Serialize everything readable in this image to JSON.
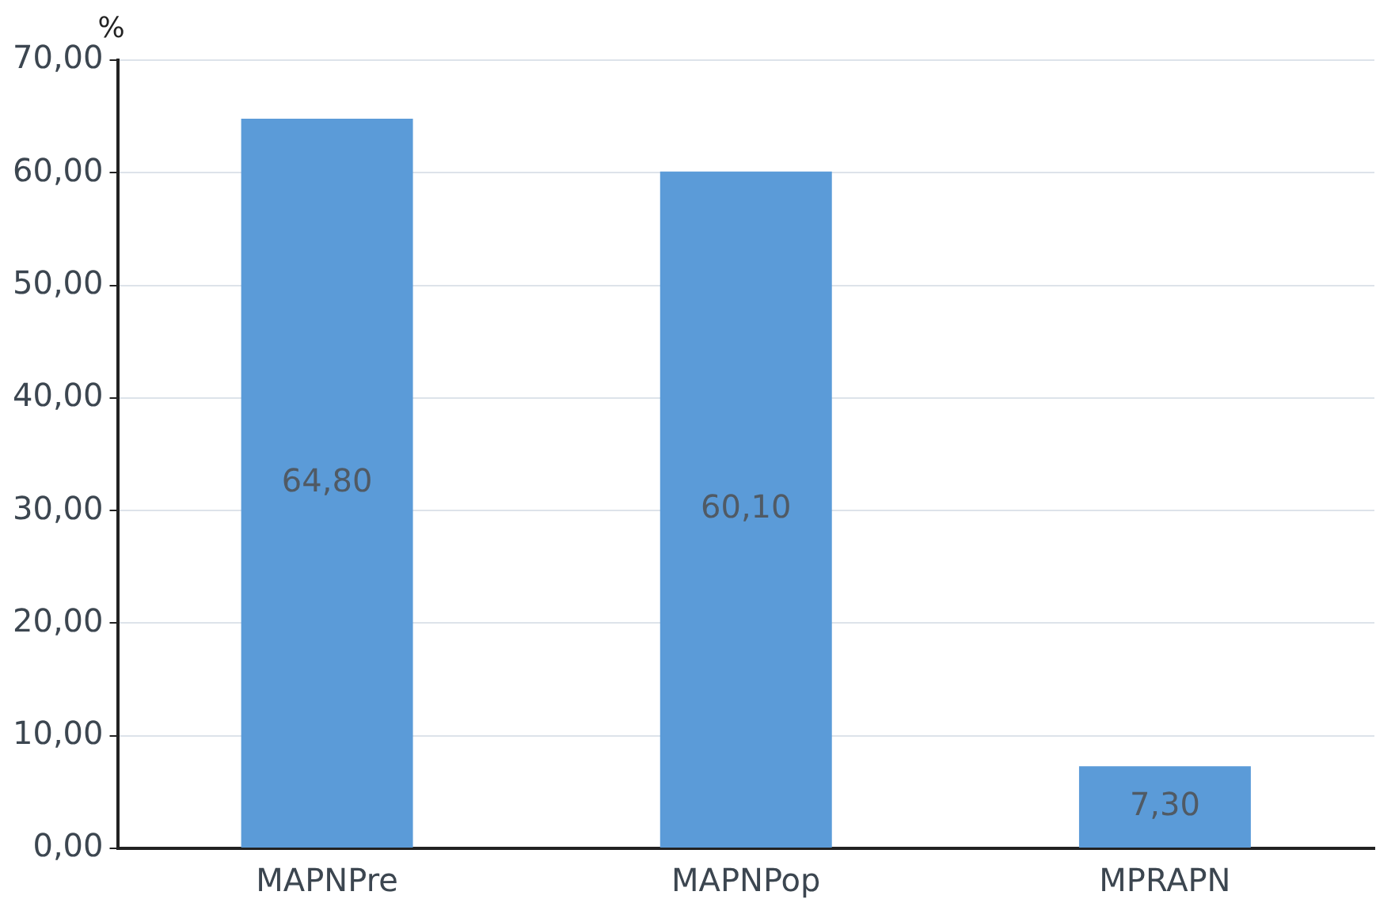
{
  "chart_data": {
    "type": "bar",
    "ylabel": "%",
    "categories": [
      "MAPNPre",
      "MAPNPop",
      "MPRAPN"
    ],
    "values": [
      64.8,
      60.1,
      7.3
    ],
    "color": "#5b9bd8",
    "value_labels": [
      "64,80",
      "60,10",
      "7,30"
    ],
    "ylim": [
      0,
      70
    ],
    "yticks": [
      {
        "value": 0,
        "label": "0,00"
      },
      {
        "value": 10,
        "label": "10,00"
      },
      {
        "value": 20,
        "label": "20,00"
      },
      {
        "value": 30,
        "label": "30,00"
      },
      {
        "value": 40,
        "label": "40,00"
      },
      {
        "value": 50,
        "label": "50,00"
      },
      {
        "value": 60,
        "label": "60,00"
      },
      {
        "value": 70,
        "label": "70,00"
      }
    ],
    "grid": "y",
    "legend": false
  }
}
